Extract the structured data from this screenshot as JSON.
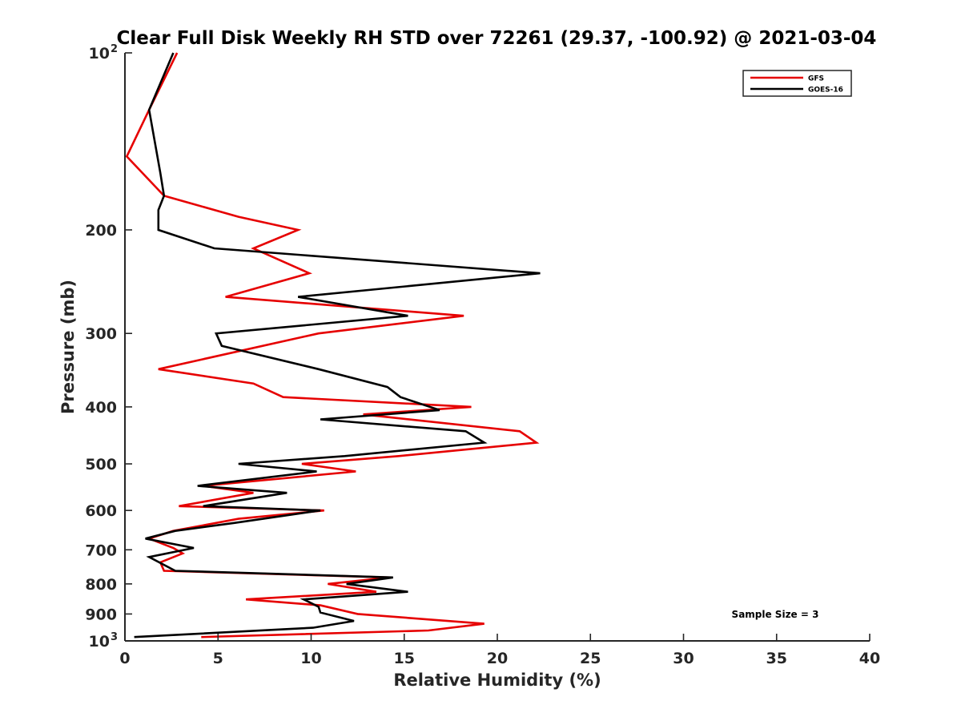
{
  "chart_data": {
    "type": "line",
    "title": "Clear Full Disk Weekly RH STD over 72261 (29.37, -100.92) @ 2021-03-04",
    "xlabel": "Relative Humidity (%)",
    "ylabel": "Pressure (mb)",
    "xlim": [
      0,
      40
    ],
    "ylim": [
      100,
      1000
    ],
    "y_scale": "log",
    "y_reversed": true,
    "x_ticks": [
      "0",
      "5",
      "10",
      "15",
      "20",
      "25",
      "30",
      "35",
      "40"
    ],
    "y_ticks": [
      {
        "value": 100,
        "label": "10",
        "sup": "2"
      },
      {
        "value": 200,
        "label": "200"
      },
      {
        "value": 300,
        "label": "300"
      },
      {
        "value": 400,
        "label": "400"
      },
      {
        "value": 500,
        "label": "500"
      },
      {
        "value": 600,
        "label": "600"
      },
      {
        "value": 700,
        "label": "700"
      },
      {
        "value": 800,
        "label": "800"
      },
      {
        "value": 900,
        "label": "900"
      },
      {
        "value": 1000,
        "label": "10",
        "sup": "3"
      }
    ],
    "grid": false,
    "legend_position": "top-right",
    "annotation": "Sample Size = 3",
    "series": [
      {
        "name": "GFS",
        "color": "#e60000",
        "points": [
          [
            2.8,
            100
          ],
          [
            1.3,
            125
          ],
          [
            0.1,
            150
          ],
          [
            2.1,
            175
          ],
          [
            6.1,
            190
          ],
          [
            9.3,
            200
          ],
          [
            6.9,
            215
          ],
          [
            9.9,
            237
          ],
          [
            5.4,
            260
          ],
          [
            18.2,
            280
          ],
          [
            10.4,
            300
          ],
          [
            1.8,
            345
          ],
          [
            6.9,
            365
          ],
          [
            8.5,
            385
          ],
          [
            18.6,
            400
          ],
          [
            12.8,
            412
          ],
          [
            21.2,
            440
          ],
          [
            22.1,
            460
          ],
          [
            14.7,
            485
          ],
          [
            9.5,
            500
          ],
          [
            12.4,
            515
          ],
          [
            4.2,
            545
          ],
          [
            6.9,
            560
          ],
          [
            2.9,
            590
          ],
          [
            10.7,
            600
          ],
          [
            6.1,
            620
          ],
          [
            2.6,
            650
          ],
          [
            1.3,
            670
          ],
          [
            2.6,
            695
          ],
          [
            3.1,
            710
          ],
          [
            1.9,
            735
          ],
          [
            2.1,
            760
          ],
          [
            14.2,
            780
          ],
          [
            10.9,
            800
          ],
          [
            13.5,
            825
          ],
          [
            6.5,
            850
          ],
          [
            10.5,
            870
          ],
          [
            12.5,
            900
          ],
          [
            19.3,
            935
          ],
          [
            16.3,
            960
          ],
          [
            4.1,
            985
          ]
        ]
      },
      {
        "name": "GOES-16",
        "color": "#000000",
        "points": [
          [
            2.6,
            100
          ],
          [
            1.3,
            125
          ],
          [
            1.9,
            160
          ],
          [
            2.1,
            175
          ],
          [
            1.8,
            185
          ],
          [
            1.8,
            200
          ],
          [
            4.8,
            215
          ],
          [
            22.3,
            237
          ],
          [
            9.3,
            260
          ],
          [
            15.2,
            280
          ],
          [
            4.9,
            300
          ],
          [
            5.2,
            315
          ],
          [
            10.4,
            345
          ],
          [
            14.1,
            370
          ],
          [
            14.8,
            385
          ],
          [
            16.9,
            405
          ],
          [
            10.5,
            420
          ],
          [
            18.3,
            440
          ],
          [
            19.3,
            460
          ],
          [
            11.8,
            485
          ],
          [
            6.1,
            500
          ],
          [
            10.3,
            515
          ],
          [
            3.9,
            545
          ],
          [
            8.7,
            560
          ],
          [
            4.2,
            590
          ],
          [
            10.5,
            600
          ],
          [
            5.9,
            630
          ],
          [
            2.7,
            650
          ],
          [
            1.1,
            670
          ],
          [
            3.7,
            695
          ],
          [
            1.3,
            720
          ],
          [
            2.7,
            760
          ],
          [
            14.4,
            780
          ],
          [
            11.9,
            800
          ],
          [
            15.2,
            825
          ],
          [
            9.6,
            850
          ],
          [
            10.4,
            875
          ],
          [
            10.5,
            895
          ],
          [
            12.3,
            925
          ],
          [
            10.1,
            950
          ],
          [
            0.5,
            985
          ]
        ]
      }
    ]
  }
}
